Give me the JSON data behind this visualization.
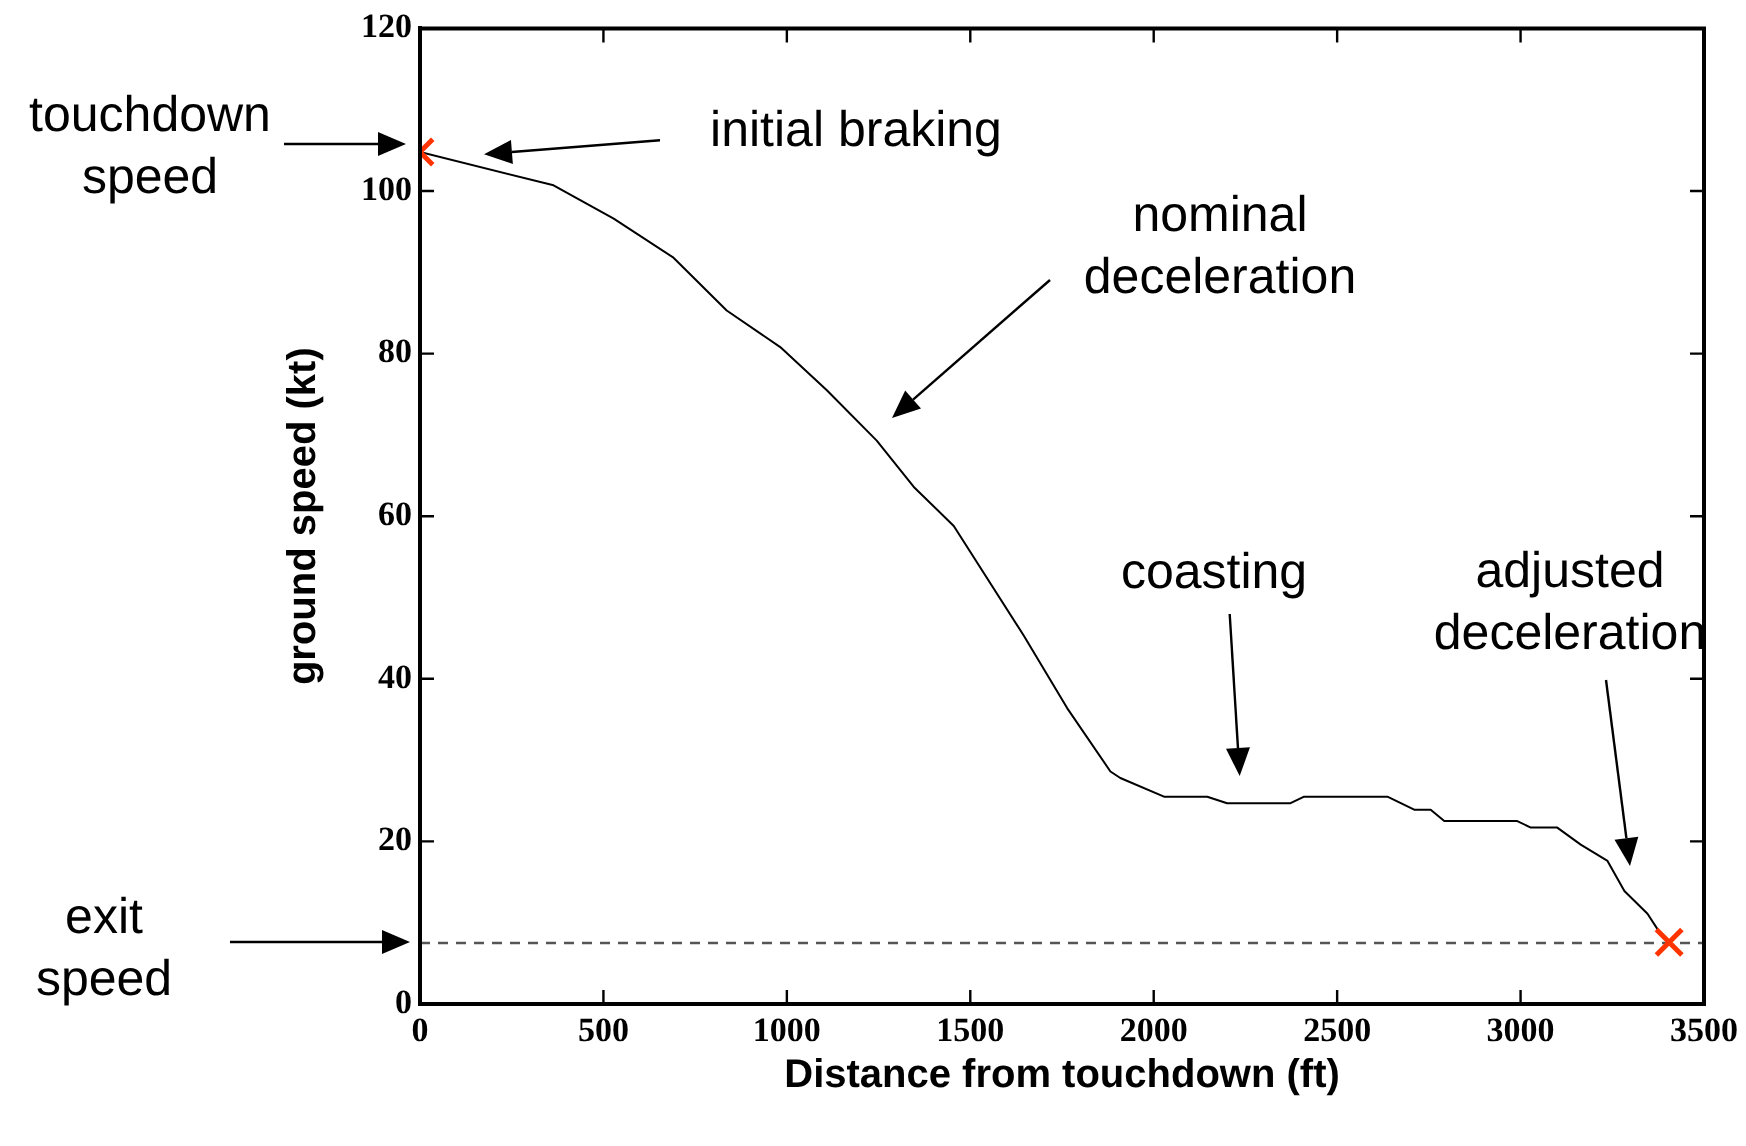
{
  "chart_data": {
    "type": "line",
    "xlabel": "Distance from touchdown (ft)",
    "ylabel": "ground speed (kt)",
    "xlim": [
      0,
      3500
    ],
    "xticks": [
      0,
      500,
      1000,
      1500,
      2000,
      2500,
      3000,
      3500
    ],
    "ylim": [
      0,
      120
    ],
    "yticks": [
      0,
      20,
      40,
      60,
      80,
      100,
      120
    ],
    "grid": false,
    "legend": false,
    "series": [
      {
        "color": "#000000",
        "marker": "none",
        "x": [
          0,
          364,
          528,
          691,
          836,
          982,
          1109,
          1245,
          1346,
          1455,
          1646,
          1764,
          1882,
          1909,
          2028,
          2146,
          2200,
          2373,
          2410,
          2637,
          2710,
          2755,
          2792,
          2991,
          3028,
          3100,
          3164,
          3237,
          3283,
          3346,
          3382,
          3405
        ],
        "values": [
          104.8,
          100.7,
          96.6,
          91.8,
          85.3,
          80.8,
          75.5,
          69.3,
          63.6,
          58.8,
          45.3,
          36.4,
          28.6,
          27.8,
          25.5,
          25.5,
          24.7,
          24.7,
          25.5,
          25.5,
          23.9,
          23.9,
          22.5,
          22.5,
          21.7,
          21.7,
          19.6,
          17.6,
          13.9,
          11.1,
          8.6,
          7.6
        ]
      },
      {
        "type": "scatter",
        "color": "#ff3300",
        "marker": "cross",
        "x": [
          0,
          3405
        ],
        "values": [
          104.8,
          7.6
        ]
      }
    ],
    "ref_lines": [
      {
        "axis": "y",
        "value": 7.5,
        "color": "#555555",
        "line_style": "dashed"
      }
    ],
    "annotations": [
      "touchdown speed",
      "initial braking",
      "nominal deceleration",
      "coasting",
      "adjusted deceleration",
      "exit speed"
    ]
  }
}
